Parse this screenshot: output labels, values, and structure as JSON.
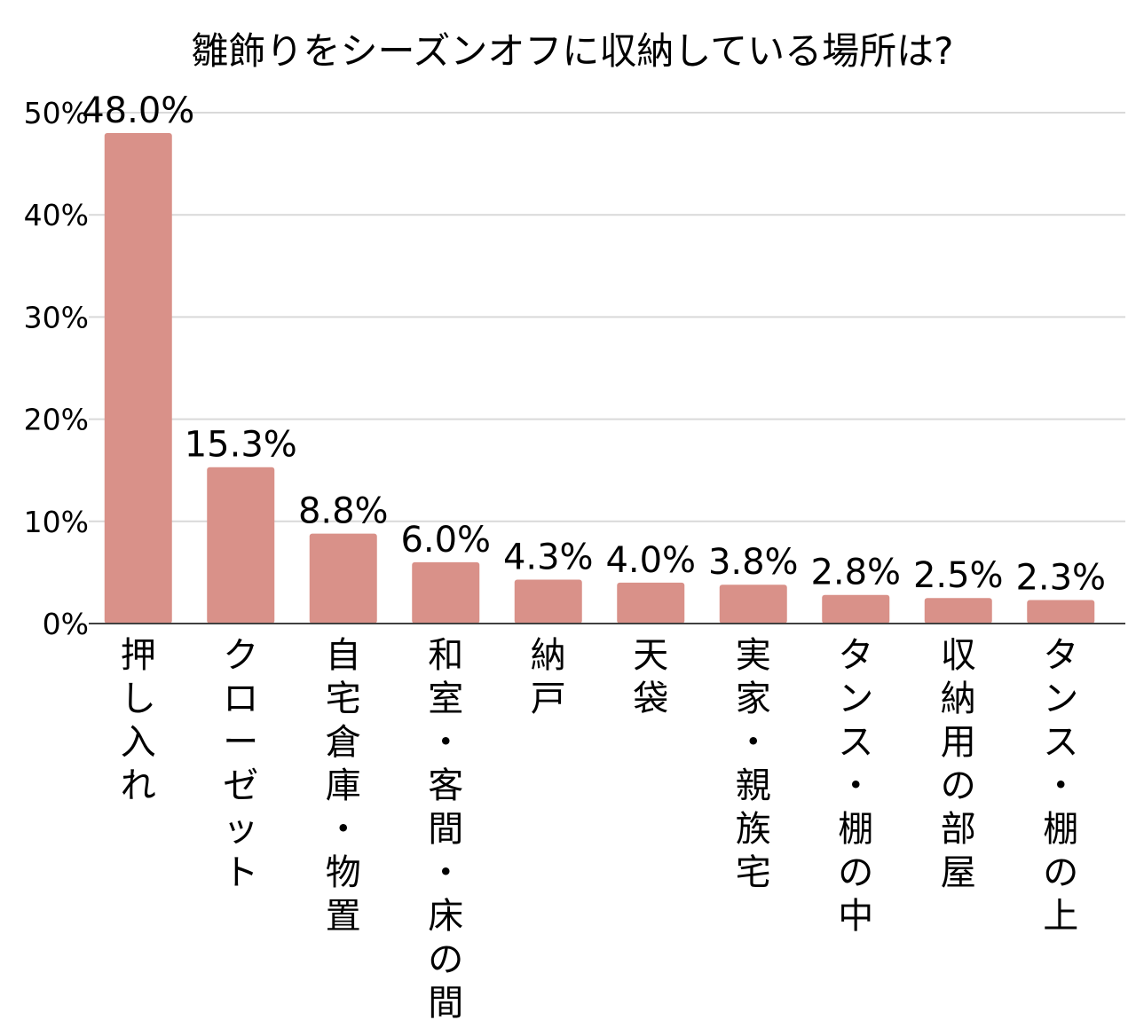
{
  "chart_data": {
    "type": "bar",
    "title": "雛飾りをシーズンオフに収納している場所は?",
    "xlabel": "",
    "ylabel": "",
    "ylim": [
      0,
      50
    ],
    "y_ticks": [
      0,
      10,
      20,
      30,
      40,
      50
    ],
    "y_tick_suffix": "%",
    "grid": true,
    "legend": "none",
    "bar_color": "#d99189",
    "grid_color": "#d9d9d9",
    "axis_color": "#404040",
    "categories": [
      "押し入れ",
      "クローゼット",
      "自宅倉庫・物置",
      "和室・客間・床の間",
      "納戸",
      "天袋",
      "実家・親族宅",
      "タンス・棚の中",
      "収納用の部屋",
      "タンス・棚の上"
    ],
    "values": [
      48.0,
      15.3,
      8.8,
      6.0,
      4.3,
      4.0,
      3.8,
      2.8,
      2.5,
      2.3
    ],
    "data_labels": [
      "48.0%",
      "15.3%",
      "8.8%",
      "6.0%",
      "4.3%",
      "4.0%",
      "3.8%",
      "2.8%",
      "2.5%",
      "2.3%"
    ]
  }
}
